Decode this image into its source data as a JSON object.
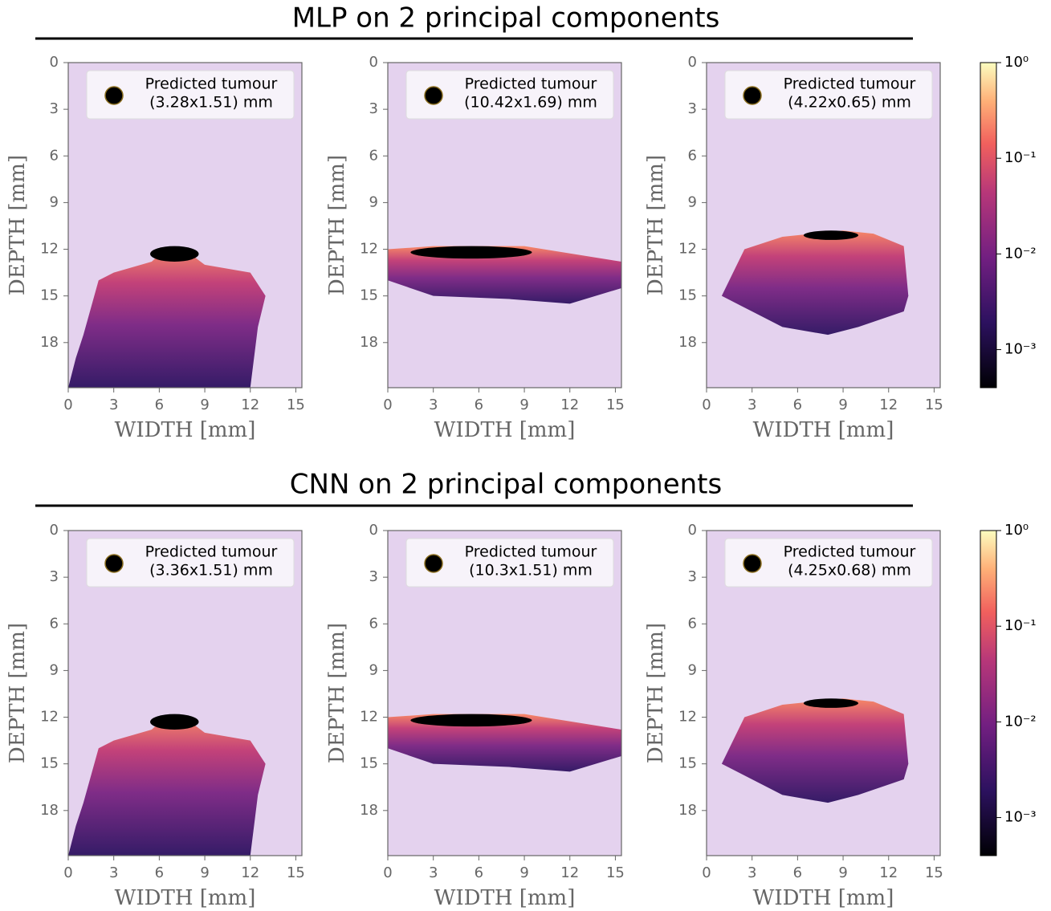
{
  "rows": [
    {
      "title": "MLP on 2 principal components",
      "colorbar": {
        "type": "colorbar",
        "scale": "log",
        "lim": [
          0.0004,
          1
        ],
        "ticks": [
          {
            "value": 0.001,
            "label": "10⁻³"
          },
          {
            "value": 0.01,
            "label": "10⁻²"
          },
          {
            "value": 0.1,
            "label": "10⁻¹"
          },
          {
            "value": 1,
            "label": "10⁰"
          }
        ]
      }
    },
    {
      "title": "CNN on 2 principal components",
      "colorbar": {
        "type": "colorbar",
        "scale": "log",
        "lim": [
          0.0004,
          1
        ],
        "ticks": [
          {
            "value": 0.001,
            "label": "10⁻³"
          },
          {
            "value": 0.01,
            "label": "10⁻²"
          },
          {
            "value": 0.1,
            "label": "10⁻¹"
          },
          {
            "value": 1,
            "label": "10⁰"
          }
        ]
      }
    }
  ],
  "chart_data": [
    {
      "type": "heatmap",
      "xlabel": "WIDTH [mm]",
      "ylabel": "DEPTH [mm]",
      "xlim": [
        0,
        15.4
      ],
      "ylim": [
        0,
        20.9
      ],
      "y_inverted": true,
      "xticks": [
        0,
        3,
        6,
        9,
        12,
        15
      ],
      "yticks": [
        0,
        3,
        6,
        9,
        12,
        15,
        18
      ],
      "legend": [
        "Predicted tumour",
        "(3.28x1.51) mm"
      ]
    },
    {
      "type": "heatmap",
      "xlabel": "WIDTH [mm]",
      "ylabel": "DEPTH [mm]",
      "xlim": [
        0,
        15.4
      ],
      "ylim": [
        0,
        20.9
      ],
      "y_inverted": true,
      "xticks": [
        0,
        3,
        6,
        9,
        12,
        15
      ],
      "yticks": [
        0,
        3,
        6,
        9,
        12,
        15,
        18
      ],
      "legend": [
        "Predicted tumour",
        "(10.42x1.69) mm"
      ]
    },
    {
      "type": "heatmap",
      "xlabel": "WIDTH [mm]",
      "ylabel": "DEPTH [mm]",
      "xlim": [
        0,
        15.4
      ],
      "ylim": [
        0,
        20.9
      ],
      "y_inverted": true,
      "xticks": [
        0,
        3,
        6,
        9,
        12,
        15
      ],
      "yticks": [
        0,
        3,
        6,
        9,
        12,
        15,
        18
      ],
      "legend": [
        "Predicted tumour",
        "(4.22x0.65) mm"
      ]
    },
    {
      "type": "heatmap",
      "xlabel": "WIDTH [mm]",
      "ylabel": "DEPTH [mm]",
      "xlim": [
        0,
        15.4
      ],
      "ylim": [
        0,
        20.9
      ],
      "y_inverted": true,
      "xticks": [
        0,
        3,
        6,
        9,
        12,
        15
      ],
      "yticks": [
        0,
        3,
        6,
        9,
        12,
        15,
        18
      ],
      "legend": [
        "Predicted tumour",
        "(3.36x1.51) mm"
      ]
    },
    {
      "type": "heatmap",
      "xlabel": "WIDTH [mm]",
      "ylabel": "DEPTH [mm]",
      "xlim": [
        0,
        15.4
      ],
      "ylim": [
        0,
        20.9
      ],
      "y_inverted": true,
      "xticks": [
        0,
        3,
        6,
        9,
        12,
        15
      ],
      "yticks": [
        0,
        3,
        6,
        9,
        12,
        15,
        18
      ],
      "legend": [
        "Predicted tumour",
        "(10.3x1.51) mm"
      ]
    },
    {
      "type": "heatmap",
      "xlabel": "WIDTH [mm]",
      "ylabel": "DEPTH [mm]",
      "xlim": [
        0,
        15.4
      ],
      "ylim": [
        0,
        20.9
      ],
      "y_inverted": true,
      "xticks": [
        0,
        3,
        6,
        9,
        12,
        15
      ],
      "yticks": [
        0,
        3,
        6,
        9,
        12,
        15,
        18
      ],
      "legend": [
        "Predicted tumour",
        "(4.25x0.68) mm"
      ]
    }
  ]
}
